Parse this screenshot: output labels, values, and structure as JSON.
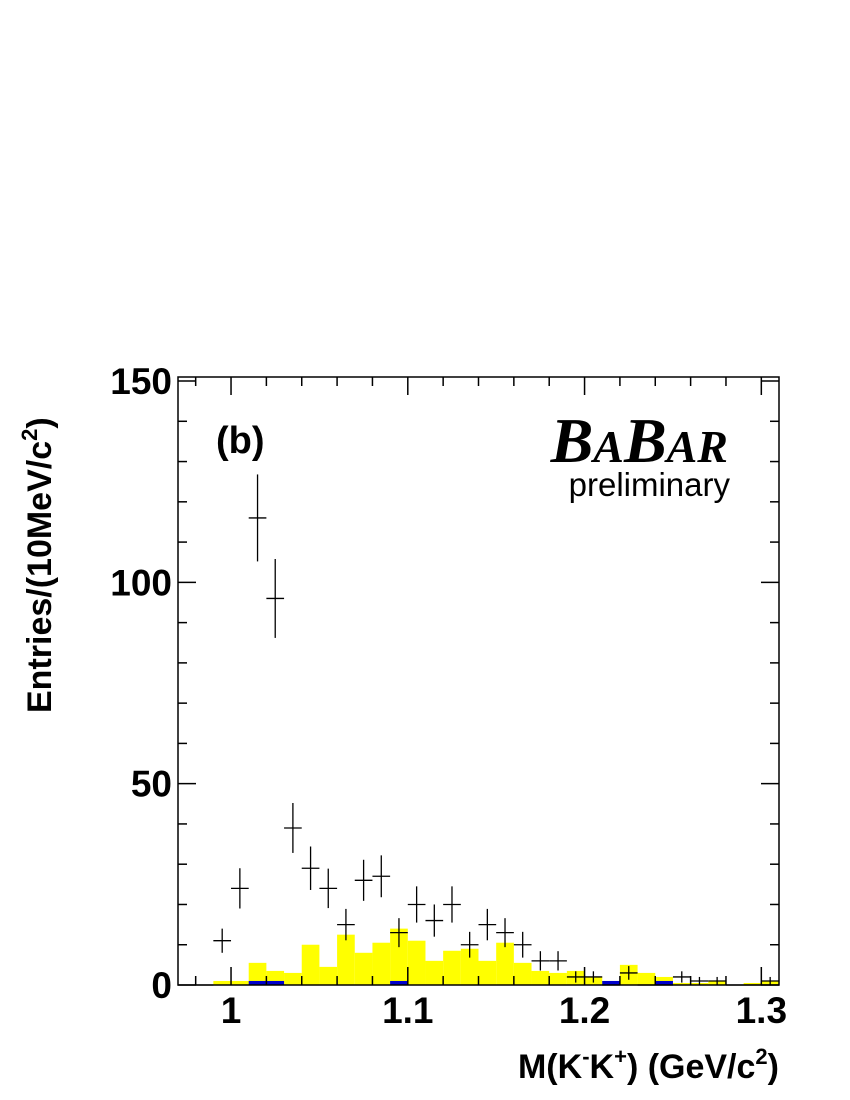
{
  "chart_data": {
    "type": "histogram",
    "panel_label": "(b)",
    "brand": {
      "b1": "B",
      "a1": "A",
      "b2": "B",
      "a2": "AR"
    },
    "subtitle": "preliminary",
    "ylabel": {
      "main": "Entries/(10MeV/c",
      "sup": "2",
      "end": ")"
    },
    "xlabel": {
      "p1": "M(K",
      "s1": "-",
      "p2": "K",
      "s2": "+",
      "p3": ") (GeV/c",
      "s3": "2",
      "p4": ")"
    },
    "xlim": [
      0.97,
      1.31
    ],
    "ylim": [
      0,
      151
    ],
    "xticks": [
      {
        "v": 1,
        "label": "1"
      },
      {
        "v": 1.1,
        "label": "1.1"
      },
      {
        "v": 1.2,
        "label": "1.2"
      },
      {
        "v": 1.3,
        "label": "1.3"
      }
    ],
    "yticks": [
      {
        "v": 0,
        "label": "0"
      },
      {
        "v": 50,
        "label": "50"
      },
      {
        "v": 100,
        "label": "100"
      },
      {
        "v": 150,
        "label": "150"
      }
    ],
    "bin_width": 0.01,
    "bin_edges": [
      0.97,
      0.98,
      0.99,
      1.0,
      1.01,
      1.02,
      1.03,
      1.04,
      1.05,
      1.06,
      1.07,
      1.08,
      1.09,
      1.1,
      1.11,
      1.12,
      1.13,
      1.14,
      1.15,
      1.16,
      1.17,
      1.18,
      1.19,
      1.2,
      1.21,
      1.22,
      1.23,
      1.24,
      1.25,
      1.26,
      1.27,
      1.28,
      1.29,
      1.3,
      1.31
    ],
    "series": [
      {
        "type": "filled-histogram",
        "color": "#ffff00",
        "values": [
          0,
          0,
          1,
          1,
          5.5,
          3.5,
          3,
          10,
          4.5,
          12.5,
          8,
          10.5,
          14,
          11,
          6,
          8.5,
          9,
          6,
          10.5,
          5.5,
          3.5,
          3,
          3.5,
          2,
          1,
          5,
          3,
          2,
          0.5,
          0.5,
          1,
          0,
          0.5,
          1
        ]
      },
      {
        "type": "filled-histogram",
        "color": "#0000cc",
        "values": [
          0,
          0,
          0,
          0,
          1,
          1,
          0,
          0,
          0,
          0,
          0,
          0,
          1,
          0,
          0,
          0,
          0,
          0,
          0,
          0,
          0,
          0,
          0,
          0,
          1,
          0,
          0,
          1,
          0,
          0,
          0,
          0,
          0,
          0
        ]
      },
      {
        "type": "data-points",
        "color": "#000000",
        "points": [
          {
            "x": 0.985,
            "y": 0,
            "err": 0
          },
          {
            "x": 0.995,
            "y": 11,
            "err": 3
          },
          {
            "x": 1.005,
            "y": 24,
            "err": 5
          },
          {
            "x": 1.015,
            "y": 116,
            "err": 10.8
          },
          {
            "x": 1.025,
            "y": 96,
            "err": 9.8
          },
          {
            "x": 1.035,
            "y": 39,
            "err": 6.2
          },
          {
            "x": 1.045,
            "y": 29,
            "err": 5.4
          },
          {
            "x": 1.055,
            "y": 24,
            "err": 4.9
          },
          {
            "x": 1.065,
            "y": 15,
            "err": 3.9
          },
          {
            "x": 1.075,
            "y": 26,
            "err": 5.1
          },
          {
            "x": 1.085,
            "y": 27,
            "err": 5.2
          },
          {
            "x": 1.095,
            "y": 13,
            "err": 3.6
          },
          {
            "x": 1.105,
            "y": 20,
            "err": 4.5
          },
          {
            "x": 1.115,
            "y": 16,
            "err": 4
          },
          {
            "x": 1.125,
            "y": 20,
            "err": 4.5
          },
          {
            "x": 1.135,
            "y": 10,
            "err": 3.2
          },
          {
            "x": 1.145,
            "y": 15,
            "err": 3.9
          },
          {
            "x": 1.155,
            "y": 13,
            "err": 3.6
          },
          {
            "x": 1.165,
            "y": 10,
            "err": 3.2
          },
          {
            "x": 1.175,
            "y": 6,
            "err": 2.4
          },
          {
            "x": 1.185,
            "y": 6,
            "err": 2.4
          },
          {
            "x": 1.195,
            "y": 2,
            "err": 1.4
          },
          {
            "x": 1.205,
            "y": 2,
            "err": 1.4
          },
          {
            "x": 1.215,
            "y": 0,
            "err": 0
          },
          {
            "x": 1.225,
            "y": 3,
            "err": 1.7
          },
          {
            "x": 1.235,
            "y": 0,
            "err": 0
          },
          {
            "x": 1.245,
            "y": 0,
            "err": 0
          },
          {
            "x": 1.255,
            "y": 2,
            "err": 1.4
          },
          {
            "x": 1.265,
            "y": 1,
            "err": 1
          },
          {
            "x": 1.275,
            "y": 1,
            "err": 1
          },
          {
            "x": 1.285,
            "y": 0,
            "err": 0
          },
          {
            "x": 1.295,
            "y": 0,
            "err": 0
          },
          {
            "x": 1.305,
            "y": 1,
            "err": 1
          }
        ]
      }
    ],
    "grid": false
  }
}
